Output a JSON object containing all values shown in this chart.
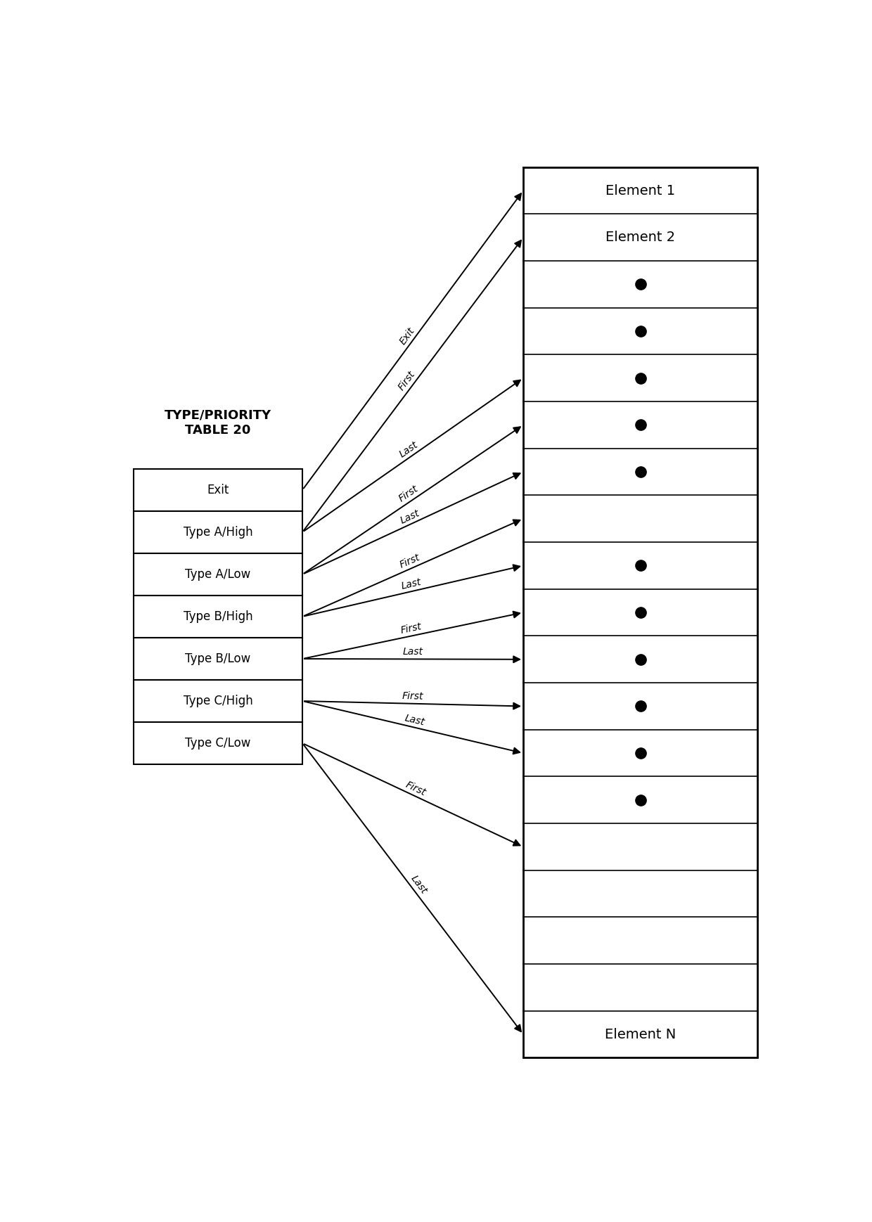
{
  "title_label": "TYPE/PRIORITY\nTABLE 20",
  "table_entries": [
    "Exit",
    "Type A/High",
    "Type A/Low",
    "Type B/High",
    "Type B/Low",
    "Type C/High",
    "Type C/Low"
  ],
  "n_queue_rows": 19,
  "queue_row_labels": {
    "0": "Element 1",
    "1": "Element 2",
    "18": "Element N"
  },
  "dot_rows": [
    2,
    3,
    4,
    5,
    6,
    8,
    9,
    10,
    11,
    12,
    13
  ],
  "arrows": [
    [
      0,
      "Exit",
      0
    ],
    [
      1,
      "First",
      1
    ],
    [
      1,
      "Last",
      4
    ],
    [
      2,
      "First",
      5
    ],
    [
      2,
      "Last",
      6
    ],
    [
      3,
      "First",
      7
    ],
    [
      3,
      "Last",
      8
    ],
    [
      4,
      "First",
      9
    ],
    [
      4,
      "Last",
      10
    ],
    [
      5,
      "First",
      11
    ],
    [
      5,
      "Last",
      12
    ],
    [
      6,
      "First",
      14
    ],
    [
      6,
      "Last",
      18
    ]
  ],
  "bg_color": "#ffffff",
  "box_color": "#000000",
  "text_color": "#000000",
  "fig_width": 12.4,
  "fig_height": 17.38,
  "dpi": 100
}
